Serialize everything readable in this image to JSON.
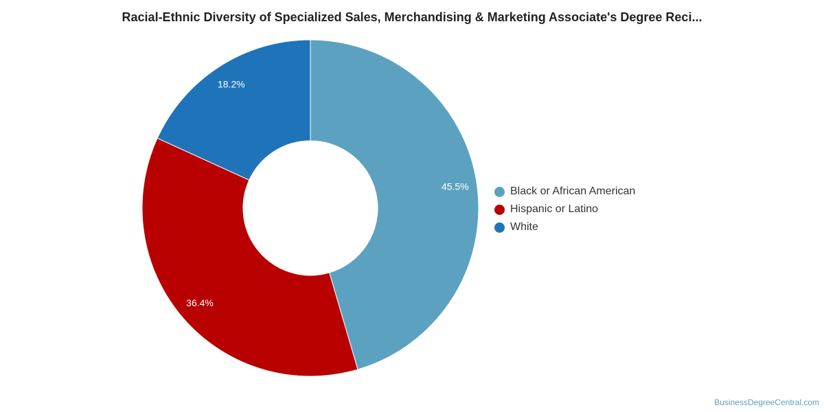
{
  "title": "Racial-Ethnic Diversity of Specialized Sales, Merchandising & Marketing Associate's Degree Reci...",
  "credit": "BusinessDegreeCentral.com",
  "chart_data": {
    "type": "pie",
    "donut": true,
    "legend_position": "right",
    "slices": [
      {
        "name": "Black or African American",
        "value": 45.5,
        "label": "45.5%",
        "color": "#5ca2c0"
      },
      {
        "name": "Hispanic or Latino",
        "value": 36.4,
        "label": "36.4%",
        "color": "#b80000"
      },
      {
        "name": "White",
        "value": 18.2,
        "label": "18.2%",
        "color": "#1f74b9"
      }
    ]
  }
}
